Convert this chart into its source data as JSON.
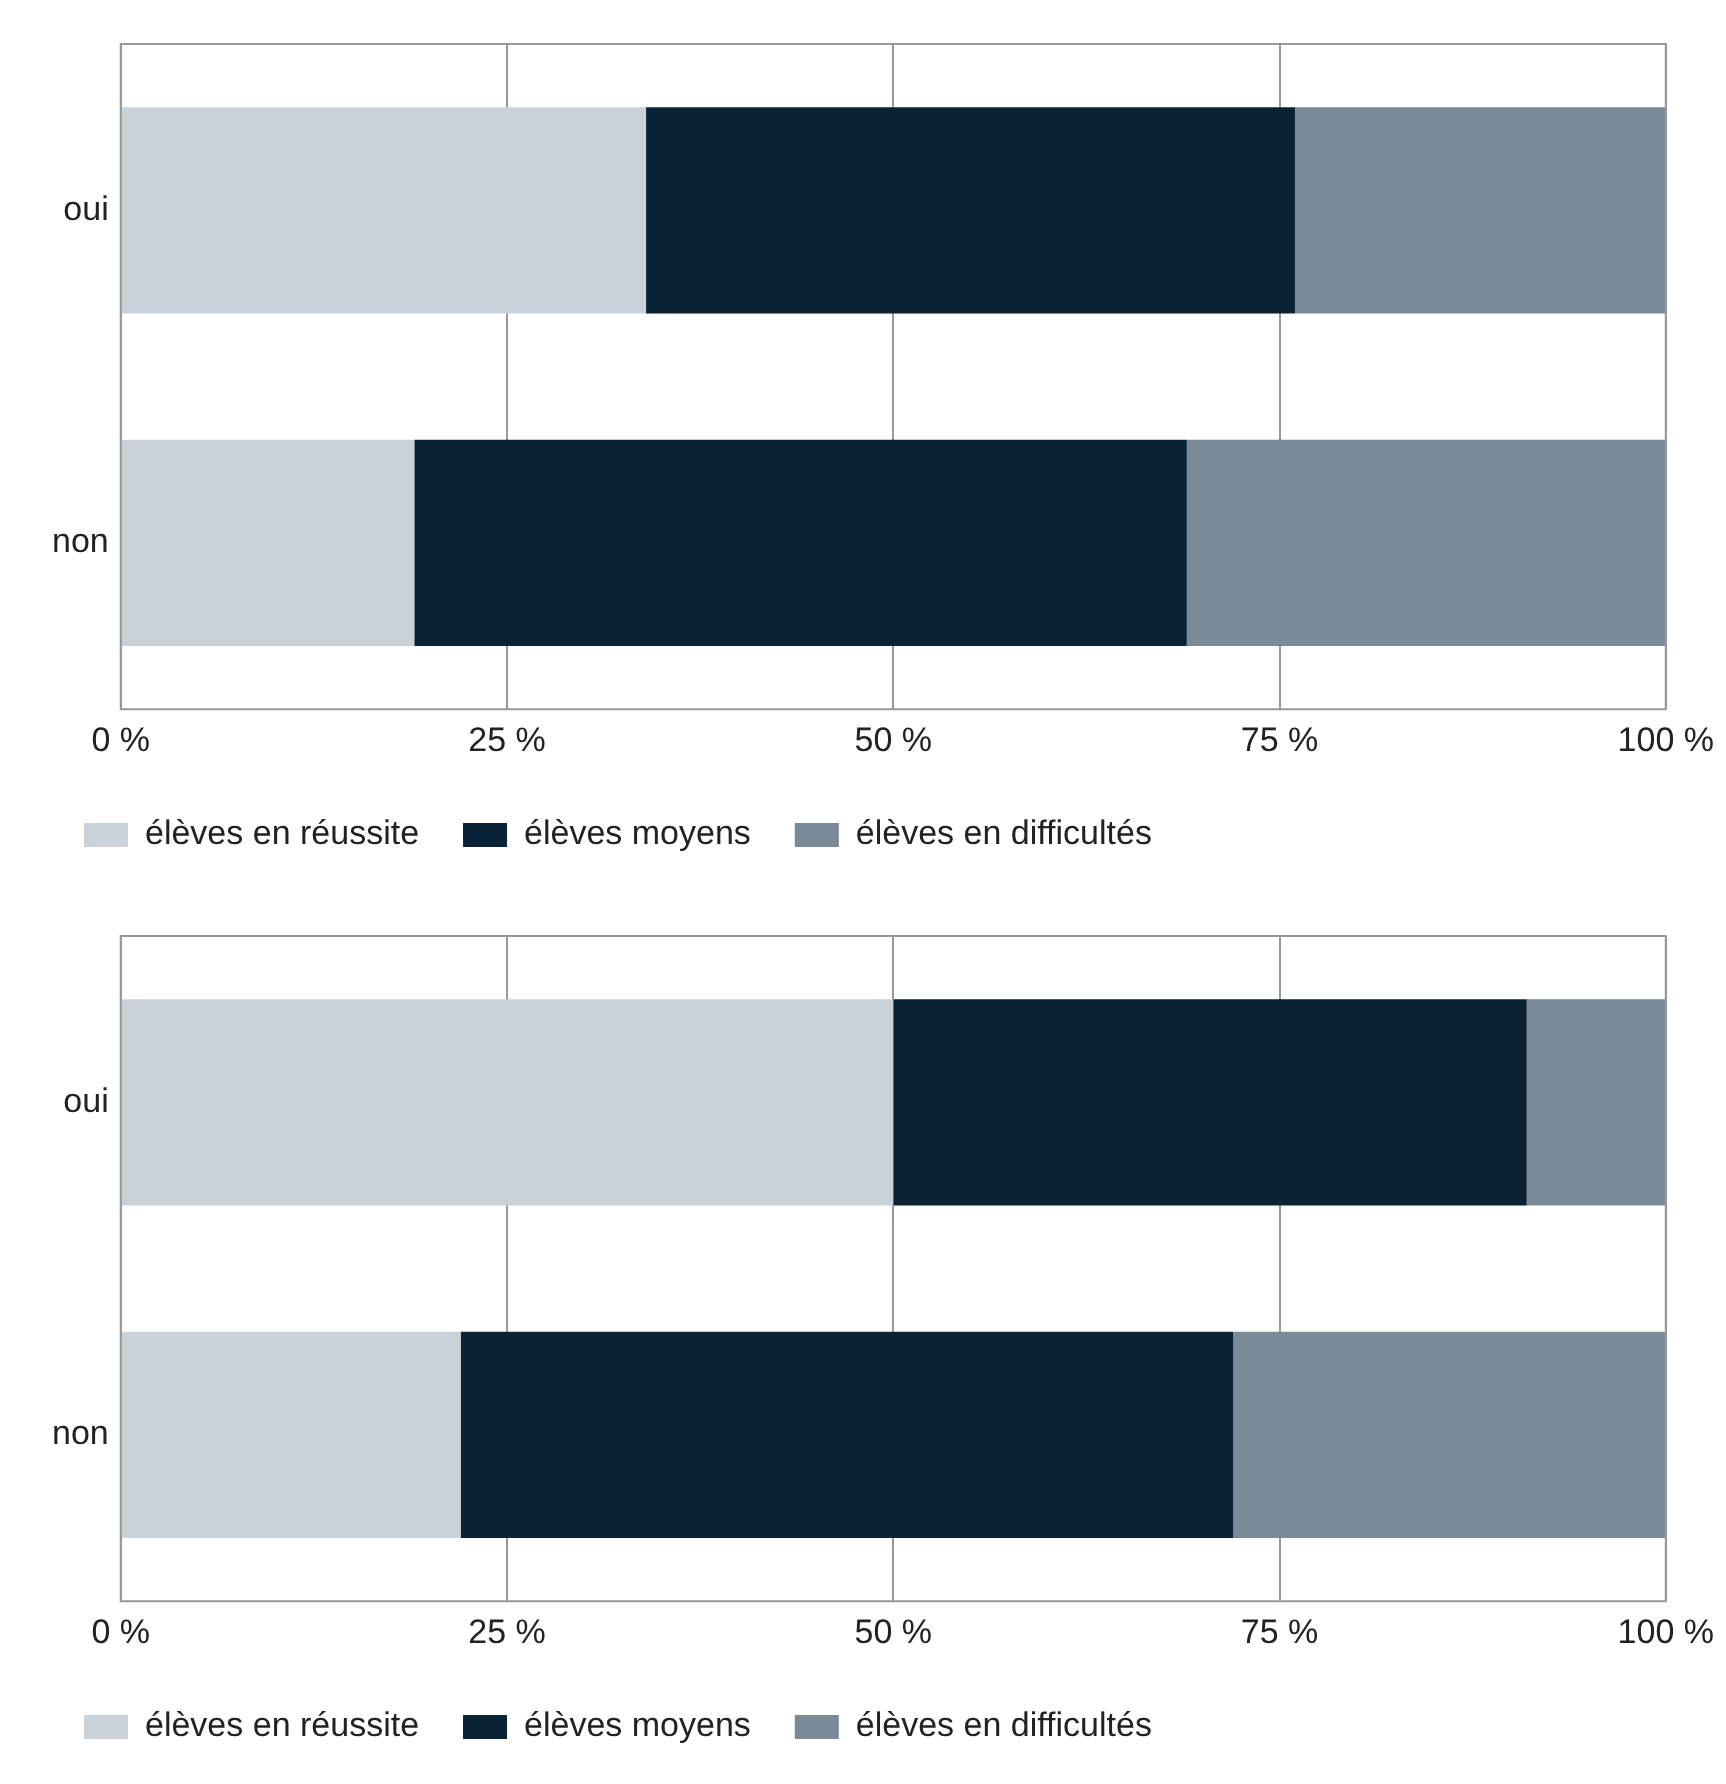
{
  "chart_data": [
    {
      "type": "bar",
      "orientation": "horizontal",
      "stacked": true,
      "categories": [
        "oui",
        "non"
      ],
      "series": [
        {
          "name": "élèves en réussite",
          "color": "#c9d2d8",
          "values": [
            34,
            19
          ]
        },
        {
          "name": "élèves moyens",
          "color": "#0a2236",
          "values": [
            42,
            50
          ]
        },
        {
          "name": "élèves en difficultés",
          "color": "#7a8a97",
          "values": [
            24,
            31
          ]
        }
      ],
      "xlim": [
        0,
        100
      ],
      "xticks": [
        {
          "value": 0,
          "label": "0 %"
        },
        {
          "value": 25,
          "label": "25 %"
        },
        {
          "value": 50,
          "label": "50 %"
        },
        {
          "value": 75,
          "label": "75 %"
        },
        {
          "value": 100,
          "label": "100 %"
        }
      ],
      "grid": "x",
      "legend": "bottom"
    },
    {
      "type": "bar",
      "orientation": "horizontal",
      "stacked": true,
      "categories": [
        "oui",
        "non"
      ],
      "series": [
        {
          "name": "élèves en réussite",
          "color": "#c9d2d8",
          "values": [
            50,
            22
          ]
        },
        {
          "name": "élèves moyens",
          "color": "#0a2236",
          "values": [
            41,
            50
          ]
        },
        {
          "name": "élèves en difficultés",
          "color": "#7a8a97",
          "values": [
            9,
            28
          ]
        }
      ],
      "xlim": [
        0,
        100
      ],
      "xticks": [
        {
          "value": 0,
          "label": "0 %"
        },
        {
          "value": 25,
          "label": "25 %"
        },
        {
          "value": 50,
          "label": "50 %"
        },
        {
          "value": 75,
          "label": "75 %"
        },
        {
          "value": 100,
          "label": "100 %"
        }
      ],
      "grid": "x",
      "legend": "bottom"
    }
  ]
}
